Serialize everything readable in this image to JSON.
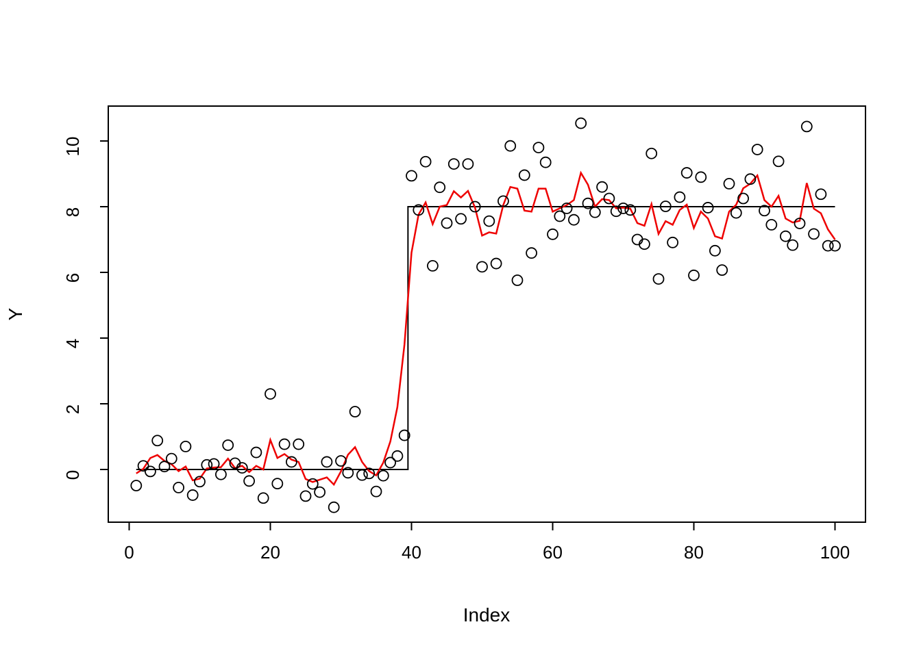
{
  "page": {
    "background": "#ffffff"
  },
  "figure": {
    "xlabel": "Index",
    "ylabel": "Y"
  },
  "chart_data": {
    "type": "scatter",
    "title": "",
    "xlabel": "Index",
    "ylabel": "Y",
    "xlim": [
      -3,
      104.5
    ],
    "ylim": [
      -1.75,
      10.95
    ],
    "x_ticks": [
      0,
      20,
      40,
      60,
      80,
      100
    ],
    "y_ticks": [
      0,
      2,
      4,
      6,
      8,
      10
    ],
    "grid": false,
    "legend": "none",
    "colors": {
      "points": "#000000",
      "step_line": "#000000",
      "smooth_line": "#ee0000"
    },
    "series": [
      {
        "name": "observations",
        "kind": "scatter",
        "marker": "open-circle",
        "color": "#000000",
        "x": [
          1,
          2,
          3,
          4,
          5,
          6,
          7,
          8,
          9,
          10,
          11,
          12,
          13,
          14,
          15,
          16,
          17,
          18,
          19,
          20,
          21,
          22,
          23,
          24,
          25,
          26,
          27,
          28,
          29,
          30,
          31,
          32,
          33,
          34,
          35,
          36,
          37,
          38,
          39,
          40,
          41,
          42,
          43,
          44,
          45,
          46,
          47,
          48,
          49,
          50,
          51,
          52,
          53,
          54,
          55,
          56,
          57,
          58,
          59,
          60,
          61,
          62,
          63,
          64,
          65,
          66,
          67,
          68,
          69,
          70,
          71,
          72,
          73,
          74,
          75,
          76,
          77,
          78,
          79,
          80,
          81,
          82,
          83,
          84,
          85,
          86,
          87,
          88,
          89,
          90,
          91,
          92,
          93,
          94,
          95,
          96,
          97,
          98,
          99,
          100
        ],
        "y": [
          -0.49,
          0.11,
          -0.06,
          0.88,
          0.09,
          0.33,
          -0.55,
          0.7,
          -0.78,
          -0.37,
          0.14,
          0.17,
          -0.15,
          0.74,
          0.19,
          0.05,
          -0.35,
          0.52,
          -0.87,
          2.3,
          -0.43,
          0.77,
          0.23,
          0.77,
          -0.81,
          -0.44,
          -0.69,
          0.23,
          -1.15,
          0.26,
          -0.1,
          1.76,
          -0.17,
          -0.12,
          -0.67,
          -0.19,
          0.21,
          0.41,
          1.04,
          8.94,
          7.9,
          9.37,
          6.2,
          8.59,
          7.5,
          9.3,
          7.63,
          9.3,
          8.0,
          6.17,
          7.56,
          6.27,
          8.17,
          9.85,
          5.76,
          8.96,
          6.59,
          9.8,
          9.35,
          7.16,
          7.71,
          7.95,
          7.6,
          10.54,
          8.1,
          7.83,
          8.6,
          8.25,
          7.86,
          7.95,
          7.9,
          7.0,
          6.86,
          9.62,
          5.8,
          8.01,
          6.91,
          8.29,
          9.03,
          5.91,
          8.9,
          7.97,
          6.66,
          6.07,
          8.7,
          7.81,
          8.25,
          8.84,
          9.74,
          7.88,
          7.45,
          9.38,
          7.1,
          6.83,
          7.49,
          10.44,
          7.17,
          8.38,
          6.81,
          6.81
        ]
      },
      {
        "name": "true-step-function",
        "kind": "line",
        "color": "#000000",
        "width": 2,
        "x": [
          1,
          39.5,
          39.5,
          100
        ],
        "y": [
          0,
          0,
          8,
          8
        ]
      },
      {
        "name": "smoothed-estimate",
        "kind": "line",
        "color": "#ee0000",
        "width": 2.5,
        "x": [
          1,
          2,
          3,
          4,
          5,
          6,
          7,
          8,
          9,
          10,
          11,
          12,
          13,
          14,
          15,
          16,
          17,
          18,
          19,
          20,
          21,
          22,
          23,
          24,
          25,
          26,
          27,
          28,
          29,
          30,
          31,
          32,
          33,
          34,
          35,
          36,
          37,
          38,
          39,
          40,
          41,
          42,
          43,
          44,
          45,
          46,
          47,
          48,
          49,
          50,
          51,
          52,
          53,
          54,
          55,
          56,
          57,
          58,
          59,
          60,
          61,
          62,
          63,
          64,
          65,
          66,
          67,
          68,
          69,
          70,
          71,
          72,
          73,
          74,
          75,
          76,
          77,
          78,
          79,
          80,
          81,
          82,
          83,
          84,
          85,
          86,
          87,
          88,
          89,
          90,
          91,
          92,
          93,
          94,
          95,
          96,
          97,
          98,
          99,
          100
        ],
        "y": [
          -0.12,
          0.02,
          0.35,
          0.44,
          0.26,
          0.16,
          -0.05,
          0.09,
          -0.33,
          -0.28,
          0.03,
          0.06,
          0.07,
          0.33,
          0.04,
          0.11,
          -0.08,
          0.11,
          0.0,
          0.9,
          0.35,
          0.47,
          0.3,
          0.23,
          -0.29,
          -0.38,
          -0.31,
          -0.24,
          -0.46,
          -0.06,
          0.45,
          0.68,
          0.23,
          -0.05,
          -0.18,
          0.21,
          0.85,
          1.9,
          3.8,
          6.6,
          7.76,
          8.13,
          7.47,
          8.0,
          8.05,
          8.47,
          8.28,
          8.48,
          7.97,
          7.12,
          7.22,
          7.18,
          8.05,
          8.6,
          8.55,
          7.88,
          7.85,
          8.55,
          8.55,
          7.85,
          7.95,
          8.05,
          8.2,
          9.03,
          8.67,
          8.0,
          8.23,
          8.2,
          7.95,
          7.97,
          7.94,
          7.5,
          7.42,
          8.08,
          7.17,
          7.56,
          7.45,
          7.9,
          8.06,
          7.35,
          7.85,
          7.64,
          7.1,
          7.03,
          7.85,
          8.06,
          8.56,
          8.7,
          8.95,
          8.2,
          8.0,
          8.33,
          7.64,
          7.52,
          7.57,
          8.72,
          7.94,
          7.8,
          7.31,
          7.0
        ]
      }
    ]
  }
}
